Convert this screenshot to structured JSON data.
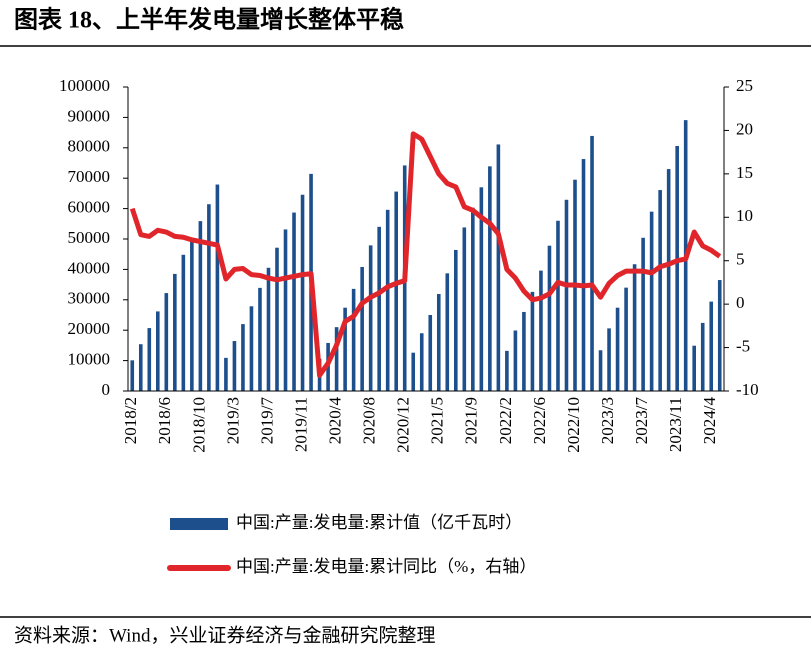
{
  "title": "图表 18、上半年发电量增长整体平稳",
  "source": "资料来源：Wind，兴业证券经济与金融研究院整理",
  "chart_data": {
    "type": "bar-line",
    "categories": [
      "2018/2",
      null,
      null,
      null,
      "2018/6",
      null,
      null,
      null,
      "2018/10",
      null,
      null,
      null,
      "2019/3",
      null,
      null,
      null,
      "2019/7",
      null,
      null,
      null,
      "2019/11",
      null,
      null,
      null,
      "2020/4",
      null,
      null,
      null,
      "2020/8",
      null,
      null,
      null,
      "2020/12",
      null,
      null,
      null,
      "2021/5",
      null,
      null,
      null,
      "2021/9",
      null,
      null,
      null,
      "2022/2",
      null,
      null,
      null,
      "2022/6",
      null,
      null,
      null,
      "2022/10",
      null,
      null,
      null,
      "2023/3",
      null,
      null,
      null,
      "2023/7",
      null,
      null,
      null,
      "2023/11",
      null,
      null,
      null,
      "2024/4",
      null
    ],
    "series": [
      {
        "name": "中国:产量:发电量:累计值（亿千瓦时）",
        "type": "bar",
        "color": "#1d4f8c",
        "values": [
          10089,
          15386,
          20697,
          26176,
          32208,
          38513,
          44808,
          50454,
          55876,
          61443,
          67914,
          10900,
          16433,
          22004,
          27868,
          33924,
          40532,
          47136,
          53146,
          58693,
          64557,
          71422,
          10600,
          15800,
          21000,
          27400,
          33600,
          40800,
          47900,
          54000,
          59600,
          65600,
          74200,
          12600,
          19000,
          25000,
          31900,
          38700,
          46400,
          53800,
          60300,
          67000,
          73900,
          81100,
          13200,
          19900,
          26000,
          32600,
          39600,
          47800,
          56000,
          62900,
          69500,
          76300,
          83900,
          13400,
          20600,
          27400,
          34000,
          41700,
          50400,
          59000,
          66100,
          73000,
          80600,
          89100,
          14900,
          22400,
          29400,
          36500
        ]
      },
      {
        "name": "中国:产量:发电量:累计同比（%，右轴）",
        "type": "line",
        "axis": "y2",
        "color": "#e0262a",
        "values": [
          11.0,
          8.0,
          7.8,
          8.5,
          8.3,
          7.8,
          7.7,
          7.4,
          7.2,
          7.0,
          6.8,
          2.9,
          4.0,
          4.1,
          3.4,
          3.3,
          3.0,
          2.8,
          3.0,
          3.2,
          3.4,
          3.5,
          -8.2,
          -6.8,
          -4.7,
          -2.0,
          -1.4,
          0.1,
          0.8,
          1.3,
          2.0,
          2.4,
          2.7,
          19.6,
          19.0,
          17.0,
          15.0,
          13.9,
          13.5,
          11.2,
          10.8,
          10.0,
          9.3,
          8.1,
          4.0,
          3.0,
          1.5,
          0.5,
          0.7,
          1.2,
          2.5,
          2.2,
          2.2,
          2.1,
          2.2,
          0.8,
          2.4,
          3.3,
          3.8,
          3.8,
          3.8,
          3.6,
          4.3,
          4.6,
          5.0,
          5.2,
          8.3,
          6.7,
          6.2,
          5.5
        ]
      }
    ],
    "ylim": [
      0,
      100000
    ],
    "yticks": [
      0,
      10000,
      20000,
      30000,
      40000,
      50000,
      60000,
      70000,
      80000,
      90000,
      100000
    ],
    "y2lim": [
      -10,
      25
    ],
    "y2ticks": [
      -10,
      -5,
      0,
      5,
      10,
      15,
      20,
      25
    ]
  }
}
